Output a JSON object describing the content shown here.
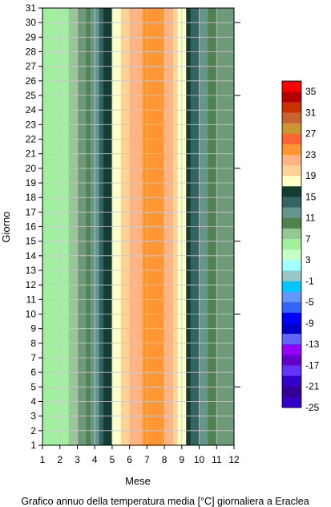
{
  "chart_data": {
    "type": "heatmap",
    "subtype": "filled-contour",
    "title": "Grafico annuo della temperatura media [°C] giornaliera a Eraclea",
    "xlabel": "Mese",
    "ylabel": "Giorno",
    "x_ticks": [
      "1",
      "2",
      "3",
      "4",
      "5",
      "6",
      "7",
      "8",
      "9",
      "10",
      "11",
      "12"
    ],
    "y_ticks": [
      "1",
      "2",
      "3",
      "4",
      "5",
      "6",
      "7",
      "8",
      "9",
      "10",
      "11",
      "12",
      "13",
      "14",
      "15",
      "16",
      "17",
      "18",
      "19",
      "20",
      "21",
      "22",
      "23",
      "24",
      "25",
      "26",
      "27",
      "28",
      "29",
      "30",
      "31"
    ],
    "xlim": [
      1,
      12
    ],
    "ylim": [
      1,
      31
    ],
    "grid": true,
    "colorbar_labels": [
      "35",
      "31",
      "27",
      "23",
      "19",
      "15",
      "11",
      "7",
      "3",
      "-1",
      "-5",
      "-9",
      "-13",
      "-17",
      "-21",
      "-25"
    ],
    "colorbar_colors": [
      "#ff0000",
      "#b40000",
      "#c83200",
      "#c86432",
      "#c89632",
      "#ff6432",
      "#ff9632",
      "#ffb482",
      "#ffd296",
      "#ffffc8",
      "#143c32",
      "#326464",
      "#64968c",
      "#508250",
      "#96c896",
      "#a0f0a0",
      "#c8ffc8",
      "#a0ffff",
      "#96c8c8",
      "#00c8ff",
      "#6496ff",
      "#3264ff",
      "#0000ff",
      "#0000c8",
      "#6464ff",
      "#9600ff",
      "#6400c8",
      "#6432ff",
      "#3200c8",
      "#320096",
      "#3200c8"
    ],
    "isotherm_profile": {
      "months": [
        1,
        2,
        3,
        4,
        5,
        6,
        7,
        8,
        9,
        10,
        11,
        12
      ],
      "mean_temp_c": [
        4,
        3,
        7,
        12,
        17,
        21,
        24,
        23,
        18,
        13,
        9,
        7
      ]
    }
  }
}
